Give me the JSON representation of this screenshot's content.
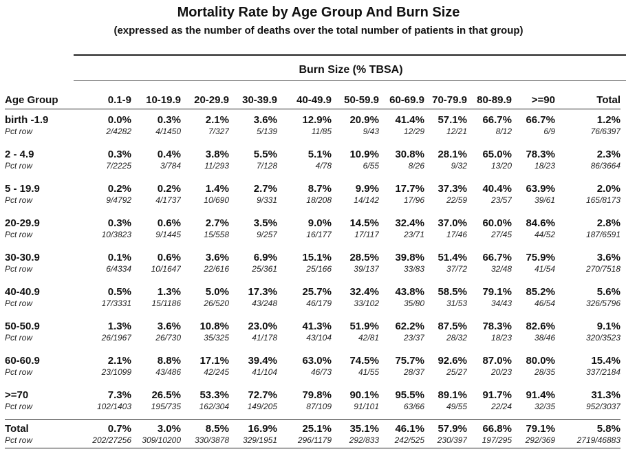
{
  "title": "Mortality Rate by Age Group And Burn Size",
  "subtitle": "(expressed as the number of deaths over the total number of patients in that group)",
  "group_header": "Burn Size (% TBSA)",
  "columns": [
    "Age Group",
    "0.1-9",
    "10-19.9",
    "20-29.9",
    "30-39.9",
    "40-49.9",
    "50-59.9",
    "60-69.9",
    "70-79.9",
    "80-89.9",
    ">=90",
    "Total"
  ],
  "rows": [
    {
      "label": "birth -1.9",
      "sub": "Pct row",
      "pct": [
        "0.0%",
        "0.3%",
        "2.1%",
        "3.6%",
        "12.9%",
        "20.9%",
        "41.4%",
        "57.1%",
        "66.7%",
        "66.7%",
        "1.2%"
      ],
      "frac": [
        "2/4282",
        "4/1450",
        "7/327",
        "5/139",
        "11/85",
        "9/43",
        "12/29",
        "12/21",
        "8/12",
        "6/9",
        "76/6397"
      ]
    },
    {
      "label": "2 - 4.9",
      "sub": "Pct row",
      "pct": [
        "0.3%",
        "0.4%",
        "3.8%",
        "5.5%",
        "5.1%",
        "10.9%",
        "30.8%",
        "28.1%",
        "65.0%",
        "78.3%",
        "2.3%"
      ],
      "frac": [
        "7/2225",
        "3/784",
        "11/293",
        "7/128",
        "4/78",
        "6/55",
        "8/26",
        "9/32",
        "13/20",
        "18/23",
        "86/3664"
      ]
    },
    {
      "label": "5 - 19.9",
      "sub": "Pct row",
      "pct": [
        "0.2%",
        "0.2%",
        "1.4%",
        "2.7%",
        "8.7%",
        "9.9%",
        "17.7%",
        "37.3%",
        "40.4%",
        "63.9%",
        "2.0%"
      ],
      "frac": [
        "9/4792",
        "4/1737",
        "10/690",
        "9/331",
        "18/208",
        "14/142",
        "17/96",
        "22/59",
        "23/57",
        "39/61",
        "165/8173"
      ]
    },
    {
      "label": "20-29.9",
      "sub": "Pct row",
      "pct": [
        "0.3%",
        "0.6%",
        "2.7%",
        "3.5%",
        "9.0%",
        "14.5%",
        "32.4%",
        "37.0%",
        "60.0%",
        "84.6%",
        "2.8%"
      ],
      "frac": [
        "10/3823",
        "9/1445",
        "15/558",
        "9/257",
        "16/177",
        "17/117",
        "23/71",
        "17/46",
        "27/45",
        "44/52",
        "187/6591"
      ]
    },
    {
      "label": "30-30.9",
      "sub": "Pct row",
      "pct": [
        "0.1%",
        "0.6%",
        "3.6%",
        "6.9%",
        "15.1%",
        "28.5%",
        "39.8%",
        "51.4%",
        "66.7%",
        "75.9%",
        "3.6%"
      ],
      "frac": [
        "6/4334",
        "10/1647",
        "22/616",
        "25/361",
        "25/166",
        "39/137",
        "33/83",
        "37/72",
        "32/48",
        "41/54",
        "270/7518"
      ]
    },
    {
      "label": "40-40.9",
      "sub": "Pct row",
      "pct": [
        "0.5%",
        "1.3%",
        "5.0%",
        "17.3%",
        "25.7%",
        "32.4%",
        "43.8%",
        "58.5%",
        "79.1%",
        "85.2%",
        "5.6%"
      ],
      "frac": [
        "17/3331",
        "15/1186",
        "26/520",
        "43/248",
        "46/179",
        "33/102",
        "35/80",
        "31/53",
        "34/43",
        "46/54",
        "326/5796"
      ]
    },
    {
      "label": "50-50.9",
      "sub": "Pct row",
      "pct": [
        "1.3%",
        "3.6%",
        "10.8%",
        "23.0%",
        "41.3%",
        "51.9%",
        "62.2%",
        "87.5%",
        "78.3%",
        "82.6%",
        "9.1%"
      ],
      "frac": [
        "26/1967",
        "26/730",
        "35/325",
        "41/178",
        "43/104",
        "42/81",
        "23/37",
        "28/32",
        "18/23",
        "38/46",
        "320/3523"
      ]
    },
    {
      "label": "60-60.9",
      "sub": "Pct row",
      "pct": [
        "2.1%",
        "8.8%",
        "17.1%",
        "39.4%",
        "63.0%",
        "74.5%",
        "75.7%",
        "92.6%",
        "87.0%",
        "80.0%",
        "15.4%"
      ],
      "frac": [
        "23/1099",
        "43/486",
        "42/245",
        "41/104",
        "46/73",
        "41/55",
        "28/37",
        "25/27",
        "20/23",
        "28/35",
        "337/2184"
      ]
    },
    {
      "label": ">=70",
      "sub": "Pct row",
      "pct": [
        "7.3%",
        "26.5%",
        "53.3%",
        "72.7%",
        "79.8%",
        "90.1%",
        "95.5%",
        "89.1%",
        "91.7%",
        "91.4%",
        "31.3%"
      ],
      "frac": [
        "102/1403",
        "195/735",
        "162/304",
        "149/205",
        "87/109",
        "91/101",
        "63/66",
        "49/55",
        "22/24",
        "32/35",
        "952/3037"
      ]
    },
    {
      "label": "Total",
      "sub": "Pct row",
      "pct": [
        "0.7%",
        "3.0%",
        "8.5%",
        "16.9%",
        "25.1%",
        "35.1%",
        "46.1%",
        "57.9%",
        "66.8%",
        "79.1%",
        "5.8%"
      ],
      "frac": [
        "202/27256",
        "309/10200",
        "330/3878",
        "329/1951",
        "296/1179",
        "292/833",
        "242/525",
        "230/397",
        "197/295",
        "292/369",
        "2719/46883"
      ]
    }
  ]
}
